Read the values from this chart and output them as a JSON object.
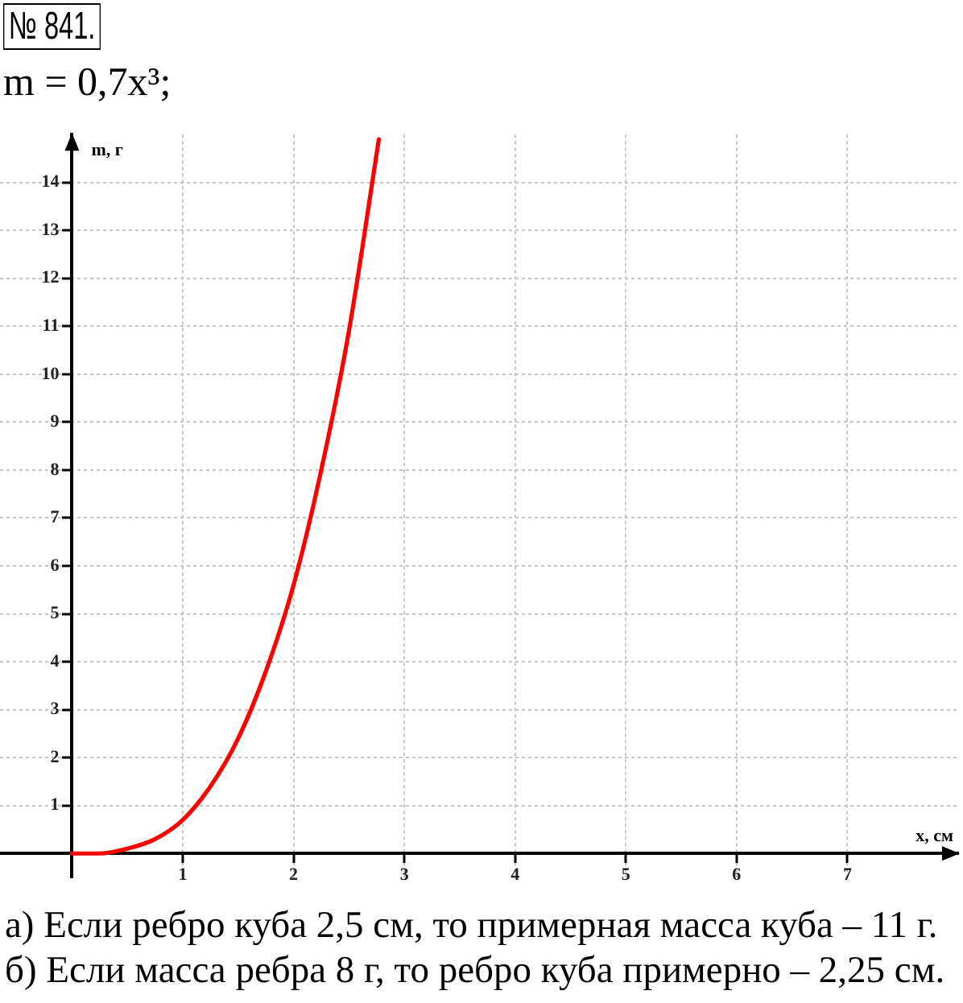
{
  "chart_data": {
    "type": "line",
    "title": "№ 841.",
    "subtitle": "m = 0,7x³;",
    "xlabel": "x, см",
    "ylabel": "m, г",
    "x": [
      0,
      0.25,
      0.5,
      0.75,
      1,
      1.25,
      1.5,
      1.75,
      2,
      2.25,
      2.5,
      2.77
    ],
    "series": [
      {
        "color": "#ff0000",
        "values": [
          0,
          0,
          0.1,
          0.3,
          0.7,
          1.4,
          2.4,
          3.8,
          5.6,
          8,
          10.9,
          14.9
        ]
      }
    ],
    "xlim": [
      -0.65,
      8
    ],
    "ylim": [
      -0.5,
      15
    ],
    "xticks": [
      1,
      2,
      3,
      4,
      5,
      6,
      7
    ],
    "yticks": [
      1,
      2,
      3,
      4,
      5,
      6,
      7,
      8,
      9,
      10,
      11,
      12,
      13,
      14
    ],
    "grid": true,
    "marker": "none",
    "line_style": "solid",
    "annotations": [
      "а) Если ребро куба 2,5 см, то примерная масса куба – 11 г.",
      "б) Если масса ребра 8 г, то ребро куба примерно – 2,25 см."
    ]
  }
}
